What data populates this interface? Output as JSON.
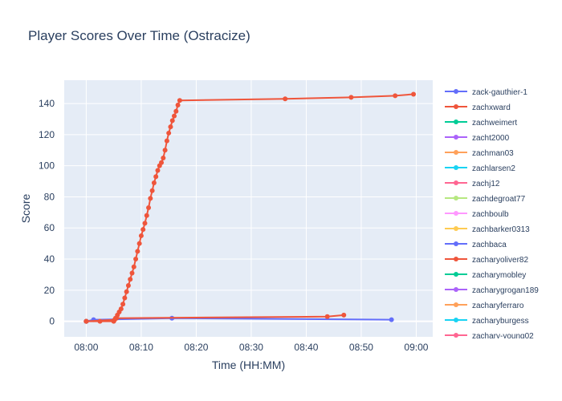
{
  "chart_data": {
    "type": "line",
    "title": "Player Scores Over Time (Ostracize)",
    "xlabel": "Time (HH:MM)",
    "ylabel": "Score",
    "x_unit": "HH:MM",
    "xlim": [
      "07:56",
      "09:03"
    ],
    "ylim": [
      -10,
      155
    ],
    "x_ticks": [
      "08:00",
      "08:10",
      "08:20",
      "08:30",
      "08:40",
      "08:50",
      "09:00"
    ],
    "y_ticks": [
      0,
      20,
      40,
      60,
      80,
      100,
      120,
      140
    ],
    "grid": true,
    "legend_position": "right",
    "series": [
      {
        "name": "zack-gauthier-1",
        "color": "#636efa",
        "points": [
          [
            "08:00",
            0
          ],
          [
            "08:01:20",
            1
          ],
          [
            "08:15:35",
            2
          ],
          [
            "08:55:30",
            1
          ]
        ]
      },
      {
        "name": "zachxward",
        "color": "#ef553b",
        "points": [
          [
            "08:00",
            0
          ],
          [
            "08:02:30",
            0
          ],
          [
            "08:05:00",
            0
          ],
          [
            "08:05:20",
            2
          ],
          [
            "08:05:40",
            4
          ],
          [
            "08:06:00",
            6
          ],
          [
            "08:06:20",
            8
          ],
          [
            "08:06:40",
            11
          ],
          [
            "08:07:00",
            15
          ],
          [
            "08:07:20",
            19
          ],
          [
            "08:07:40",
            23
          ],
          [
            "08:08:00",
            27
          ],
          [
            "08:08:20",
            31
          ],
          [
            "08:08:40",
            35
          ],
          [
            "08:09:00",
            40
          ],
          [
            "08:09:20",
            45
          ],
          [
            "08:09:40",
            50
          ],
          [
            "08:10:00",
            55
          ],
          [
            "08:10:20",
            59
          ],
          [
            "08:10:40",
            63
          ],
          [
            "08:11:00",
            68
          ],
          [
            "08:11:20",
            73
          ],
          [
            "08:11:40",
            79
          ],
          [
            "08:12:00",
            84
          ],
          [
            "08:12:20",
            89
          ],
          [
            "08:12:40",
            93
          ],
          [
            "08:13:00",
            97
          ],
          [
            "08:13:20",
            100
          ],
          [
            "08:13:40",
            102
          ],
          [
            "08:14:00",
            105
          ],
          [
            "08:14:20",
            110
          ],
          [
            "08:14:40",
            116
          ],
          [
            "08:15:00",
            121
          ],
          [
            "08:15:20",
            125
          ],
          [
            "08:15:40",
            129
          ],
          [
            "08:16:00",
            132
          ],
          [
            "08:16:20",
            135
          ],
          [
            "08:16:40",
            139
          ],
          [
            "08:17:00",
            142
          ],
          [
            "08:36:10",
            143
          ],
          [
            "08:48:10",
            144
          ],
          [
            "08:56:10",
            145
          ],
          [
            "08:59:30",
            146
          ]
        ]
      },
      {
        "name": "zacharyoliver82",
        "color": "#ef553b",
        "points": [
          [
            "08:00",
            0
          ],
          [
            "08:05:10",
            1
          ],
          [
            "08:05:30",
            2
          ],
          [
            "08:43:50",
            3
          ],
          [
            "08:46:50",
            4
          ]
        ]
      },
      {
        "name": "zachweimert",
        "color": "#00cc96",
        "points": [
          [
            "08:00",
            0
          ]
        ]
      },
      {
        "name": "zacht2000",
        "color": "#ab63fa",
        "points": [
          [
            "08:00",
            0
          ]
        ]
      },
      {
        "name": "zachman03",
        "color": "#ffa15a",
        "points": [
          [
            "08:00",
            0
          ]
        ]
      },
      {
        "name": "zachlarsen2",
        "color": "#19d3f3",
        "points": [
          [
            "08:00",
            0
          ]
        ]
      },
      {
        "name": "zachj12",
        "color": "#ff6692",
        "points": [
          [
            "08:00",
            0
          ]
        ]
      },
      {
        "name": "zachdegroat77",
        "color": "#b6e880",
        "points": [
          [
            "08:00",
            0
          ]
        ]
      },
      {
        "name": "zachboulb",
        "color": "#ff97ff",
        "points": [
          [
            "08:00",
            0
          ]
        ]
      },
      {
        "name": "zachbarker0313",
        "color": "#fecb52",
        "points": [
          [
            "08:00",
            0
          ]
        ]
      },
      {
        "name": "zachbaca",
        "color": "#636efa",
        "points": [
          [
            "08:00",
            0
          ]
        ]
      },
      {
        "name": "zacharymobley",
        "color": "#00cc96",
        "points": [
          [
            "08:00",
            0
          ]
        ]
      },
      {
        "name": "zacharygrogan189",
        "color": "#ab63fa",
        "points": [
          [
            "08:00",
            0
          ]
        ]
      },
      {
        "name": "zacharyferraro",
        "color": "#ffa15a",
        "points": [
          [
            "08:00",
            0
          ]
        ]
      },
      {
        "name": "zacharyburgess",
        "color": "#19d3f3",
        "points": [
          [
            "08:00",
            0
          ]
        ]
      },
      {
        "name": "zachary-young02",
        "color": "#ff6692",
        "points": [
          [
            "08:00",
            0
          ]
        ]
      }
    ],
    "legend_order": [
      "zack-gauthier-1",
      "zachxward",
      "zachweimert",
      "zacht2000",
      "zachman03",
      "zachlarsen2",
      "zachj12",
      "zachdegroat77",
      "zachboulb",
      "zachbarker0313",
      "zachbaca",
      "zacharyoliver82",
      "zacharymobley",
      "zacharygrogan189",
      "zacharyferraro",
      "zacharyburgess",
      "zachary-young02"
    ]
  }
}
